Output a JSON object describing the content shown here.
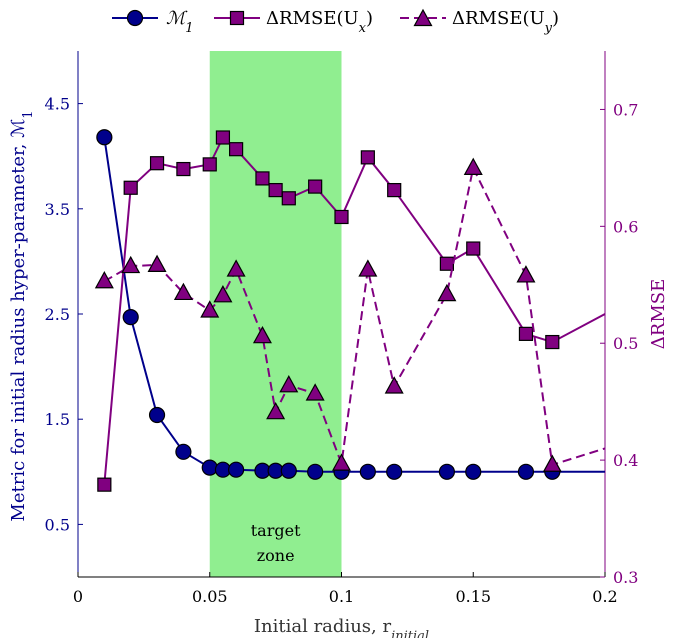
{
  "chart_data": {
    "type": "line",
    "xlabel": "Initial radius, r",
    "xlabel_sub": "initial",
    "ylabel_left": "Metric for initial radius hyper-parameter, ℳ",
    "ylabel_left_sub": "1",
    "ylabel_right": "ΔRMSE",
    "xlim": [
      0,
      0.2
    ],
    "ylim_left": [
      0,
      5
    ],
    "ylim_right": [
      0.3,
      0.75
    ],
    "x_ticks": [
      0,
      0.05,
      0.1,
      0.15,
      0.2
    ],
    "x_tick_labels": [
      "0",
      "0.05",
      "0.1",
      "0.15",
      "0.2"
    ],
    "y_left_ticks": [
      0.5,
      1.5,
      2.5,
      3.5,
      4.5
    ],
    "y_left_tick_labels": [
      "0.5",
      "1.5",
      "2.5",
      "3.5",
      "4.5"
    ],
    "y_right_ticks": [
      0.3,
      0.4,
      0.5,
      0.6,
      0.7
    ],
    "y_right_tick_labels": [
      "0.3",
      "0.4",
      "0.5",
      "0.6",
      "0.7"
    ],
    "target_zone": {
      "x_start": 0.05,
      "x_end": 0.1,
      "label_line1": "target",
      "label_line2": "zone",
      "color": "#90ee90"
    },
    "colors": {
      "m1": "#00008b",
      "purple": "#800080"
    },
    "legend": {
      "m1_label": "ℳ",
      "m1_sub": "1",
      "ux_label": "ΔRMSE(U",
      "ux_sub": "x",
      "uy_label": "ΔRMSE(U",
      "uy_sub": "y",
      "close_paren": ")"
    },
    "series": [
      {
        "key": "m1",
        "axis": "left",
        "style": "solid",
        "marker": "circle",
        "x": [
          0.01,
          0.02,
          0.03,
          0.04,
          0.05,
          0.055,
          0.06,
          0.07,
          0.075,
          0.08,
          0.09,
          0.1,
          0.11,
          0.12,
          0.14,
          0.15,
          0.17,
          0.18,
          0.2
        ],
        "y": [
          4.18,
          2.47,
          1.54,
          1.19,
          1.04,
          1.02,
          1.02,
          1.01,
          1.01,
          1.01,
          1.0,
          1.0,
          1.0,
          1.0,
          1.0,
          1.0,
          1.0,
          1.0,
          1.0
        ]
      },
      {
        "key": "ux",
        "axis": "right",
        "style": "solid",
        "marker": "square",
        "x": [
          0.01,
          0.02,
          0.03,
          0.04,
          0.05,
          0.055,
          0.06,
          0.07,
          0.075,
          0.08,
          0.09,
          0.1,
          0.11,
          0.12,
          0.14,
          0.15,
          0.17,
          0.18,
          0.2
        ],
        "y": [
          0.379,
          0.633,
          0.654,
          0.649,
          0.653,
          0.676,
          0.666,
          0.641,
          0.631,
          0.624,
          0.634,
          0.608,
          0.659,
          0.631,
          0.568,
          0.581,
          0.508,
          0.501,
          0.525
        ]
      },
      {
        "key": "uy",
        "axis": "right",
        "style": "dashed",
        "marker": "triangle",
        "x": [
          0.01,
          0.02,
          0.03,
          0.04,
          0.05,
          0.055,
          0.06,
          0.07,
          0.075,
          0.08,
          0.09,
          0.1,
          0.11,
          0.12,
          0.14,
          0.15,
          0.17,
          0.18,
          0.2
        ],
        "y": [
          0.553,
          0.566,
          0.567,
          0.543,
          0.528,
          0.541,
          0.563,
          0.506,
          0.441,
          0.464,
          0.457,
          0.397,
          0.563,
          0.463,
          0.542,
          0.65,
          0.558,
          0.396,
          0.41
        ]
      }
    ]
  }
}
